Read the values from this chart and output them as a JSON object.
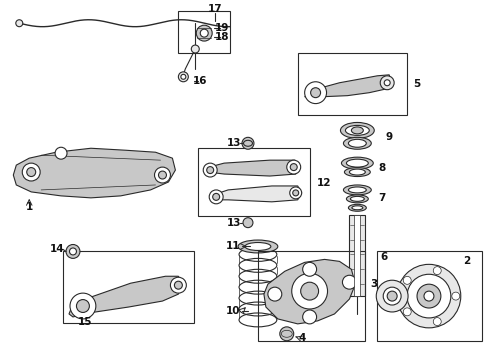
{
  "bg_color": "#ffffff",
  "line_color": "#2a2a2a",
  "gray_fill": "#c8c8c8",
  "light_fill": "#e8e8e8",
  "figsize": [
    4.9,
    3.6
  ],
  "dpi": 100
}
